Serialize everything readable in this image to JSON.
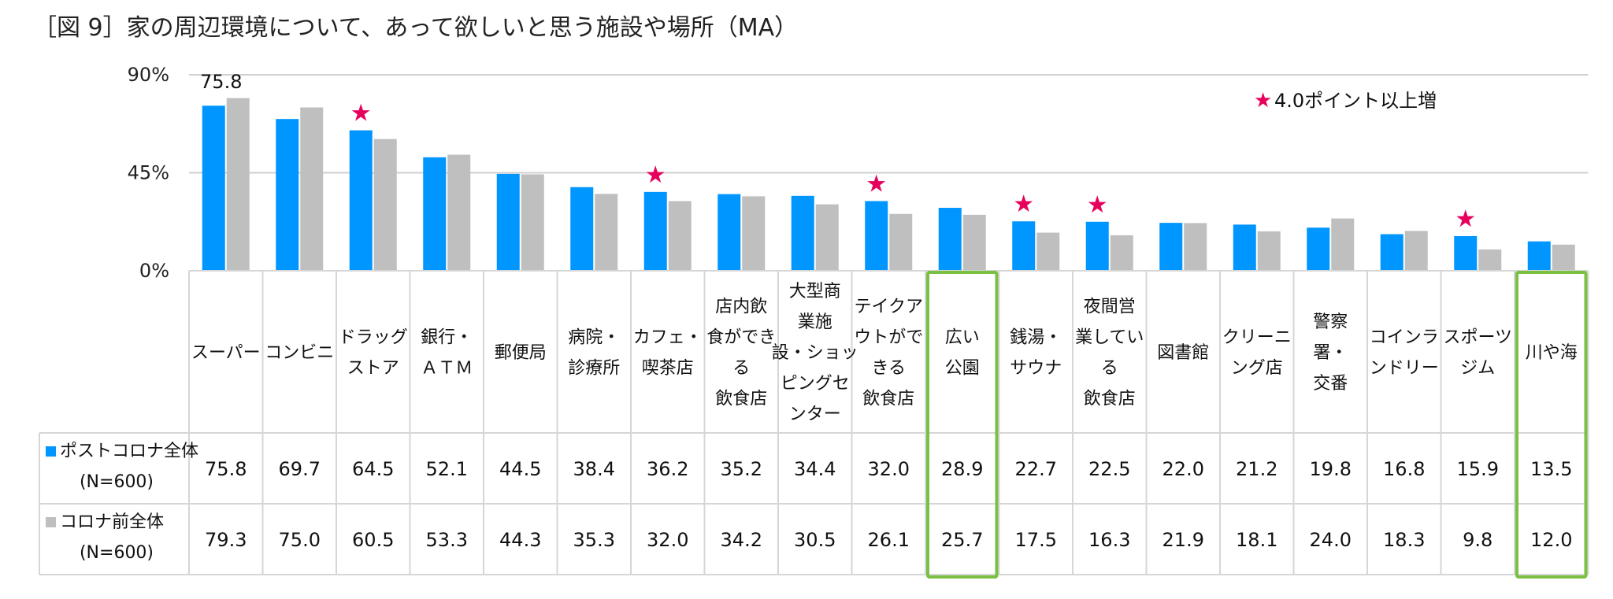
{
  "chart_data": {
    "type": "bar",
    "title": "［図 9］家の周辺環境について、あって欲しいと思う施設や場所（MA）",
    "y_ticks": [
      "90%",
      "45%",
      "0%"
    ],
    "ylim": [
      0,
      90
    ],
    "categories": [
      [
        "スーパー"
      ],
      [
        "コンビニ"
      ],
      [
        "ドラッグ",
        "ストア"
      ],
      [
        "銀行・",
        "ＡＴＭ"
      ],
      [
        "郵便局"
      ],
      [
        "病院・",
        "診療所"
      ],
      [
        "カフェ・",
        "喫茶店"
      ],
      [
        "店内飲",
        "食ができ",
        "る",
        "飲食店"
      ],
      [
        "大型商",
        "業施",
        "設・ショッ",
        "ピングセ",
        "ンター"
      ],
      [
        "テイクア",
        "ウトがで",
        "きる",
        "飲食店"
      ],
      [
        "広い",
        "公園"
      ],
      [
        "銭湯・",
        "サウナ"
      ],
      [
        "夜間営",
        "業してい",
        "る",
        "飲食店"
      ],
      [
        "図書館"
      ],
      [
        "クリーニ",
        "ング店"
      ],
      [
        "警察",
        "署・",
        "交番"
      ],
      [
        "コインラ",
        "ンドリー"
      ],
      [
        "スポーツ",
        "ジム"
      ],
      [
        "川や海"
      ]
    ],
    "series": [
      {
        "name": "ポストコロナ全体",
        "n": "(N=600)",
        "color": "#0096ff",
        "values": [
          75.8,
          69.7,
          64.5,
          52.1,
          44.5,
          38.4,
          36.2,
          35.2,
          34.4,
          32.0,
          28.9,
          22.7,
          22.5,
          22.0,
          21.2,
          19.8,
          16.8,
          15.9,
          13.5
        ]
      },
      {
        "name": "コロナ前全体",
        "n": "(N=600)",
        "color": "#bfbfbf",
        "values": [
          79.3,
          75.0,
          60.5,
          53.3,
          44.3,
          35.3,
          32.0,
          34.2,
          30.5,
          26.1,
          25.7,
          17.5,
          16.3,
          21.9,
          18.1,
          24.0,
          18.3,
          9.8,
          12.0
        ]
      }
    ],
    "star_indices": [
      2,
      6,
      9,
      11,
      12,
      17
    ],
    "star_glyph": "★",
    "star_legend": "4.0ポイント以上増",
    "annotation": "75.8",
    "highlight_indices": [
      10,
      18
    ],
    "colors": {
      "star": "#e6005c",
      "highlight": "#7ac143",
      "grid": "#d0d0d0"
    }
  }
}
